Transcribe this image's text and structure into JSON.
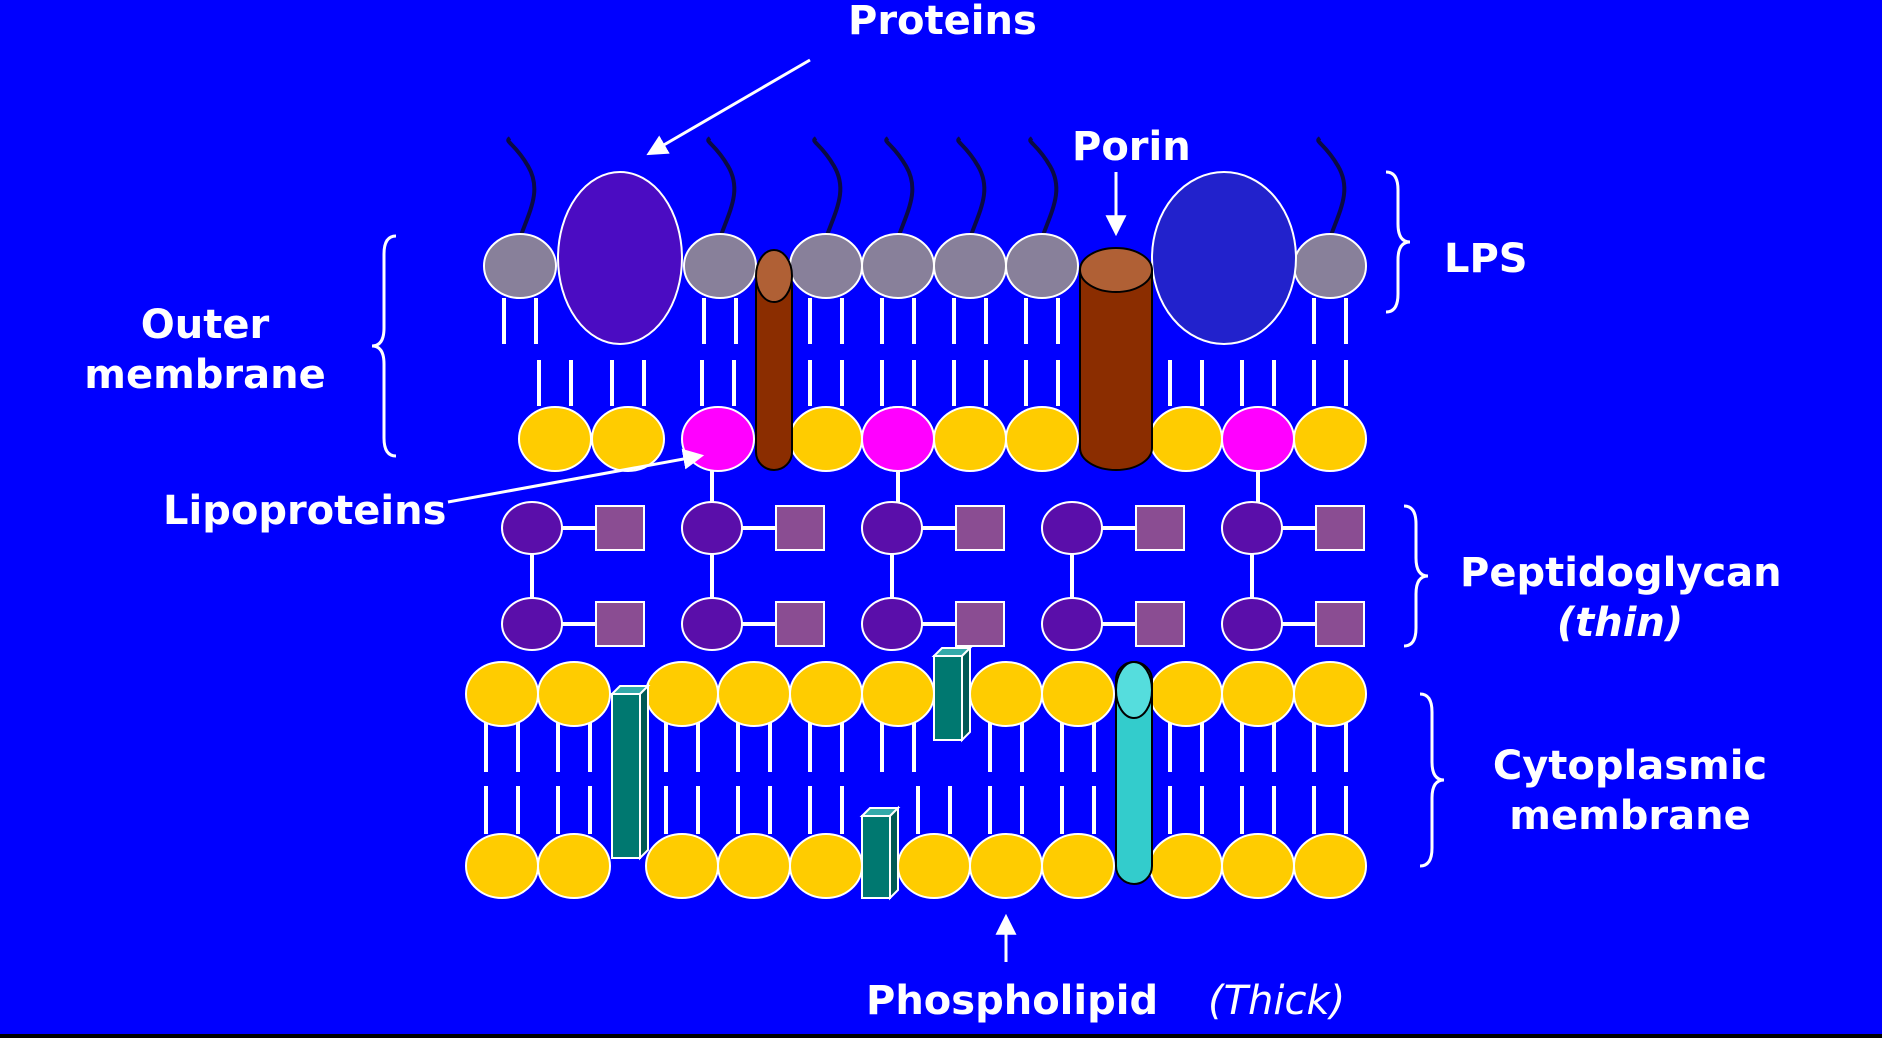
{
  "labels": {
    "proteins": "Proteins",
    "porin": "Porin",
    "lps": "LPS",
    "outer_membrane_line1": "Outer",
    "outer_membrane_line2": "membrane",
    "lipoproteins": "Lipoproteins",
    "peptidoglycan": "Peptidoglycan",
    "peptidoglycan_note": "(thin)",
    "cytoplasmic_line1": "Cytoplasmic",
    "cytoplasmic_line2": "membrane",
    "phospholipid": "Phospholipid",
    "phospholipid_note": "(Thick)"
  },
  "colors": {
    "background": "#0000FF",
    "lps_head": "#88809A",
    "phospholipid_head": "#FFCC00",
    "lipoprotein_head": "#FF00FF",
    "porin": "#8B2D00",
    "porin_top": "#B06035",
    "outer_protein_1": "#4B0CC2",
    "outer_protein_2": "#2222CC",
    "peptidoglycan_sugar_a": "#5A0EAA",
    "peptidoglycan_sugar_b": "#8A4D92",
    "membrane_protein_small": "#007870",
    "membrane_protein_channel": "#33CCCC"
  }
}
